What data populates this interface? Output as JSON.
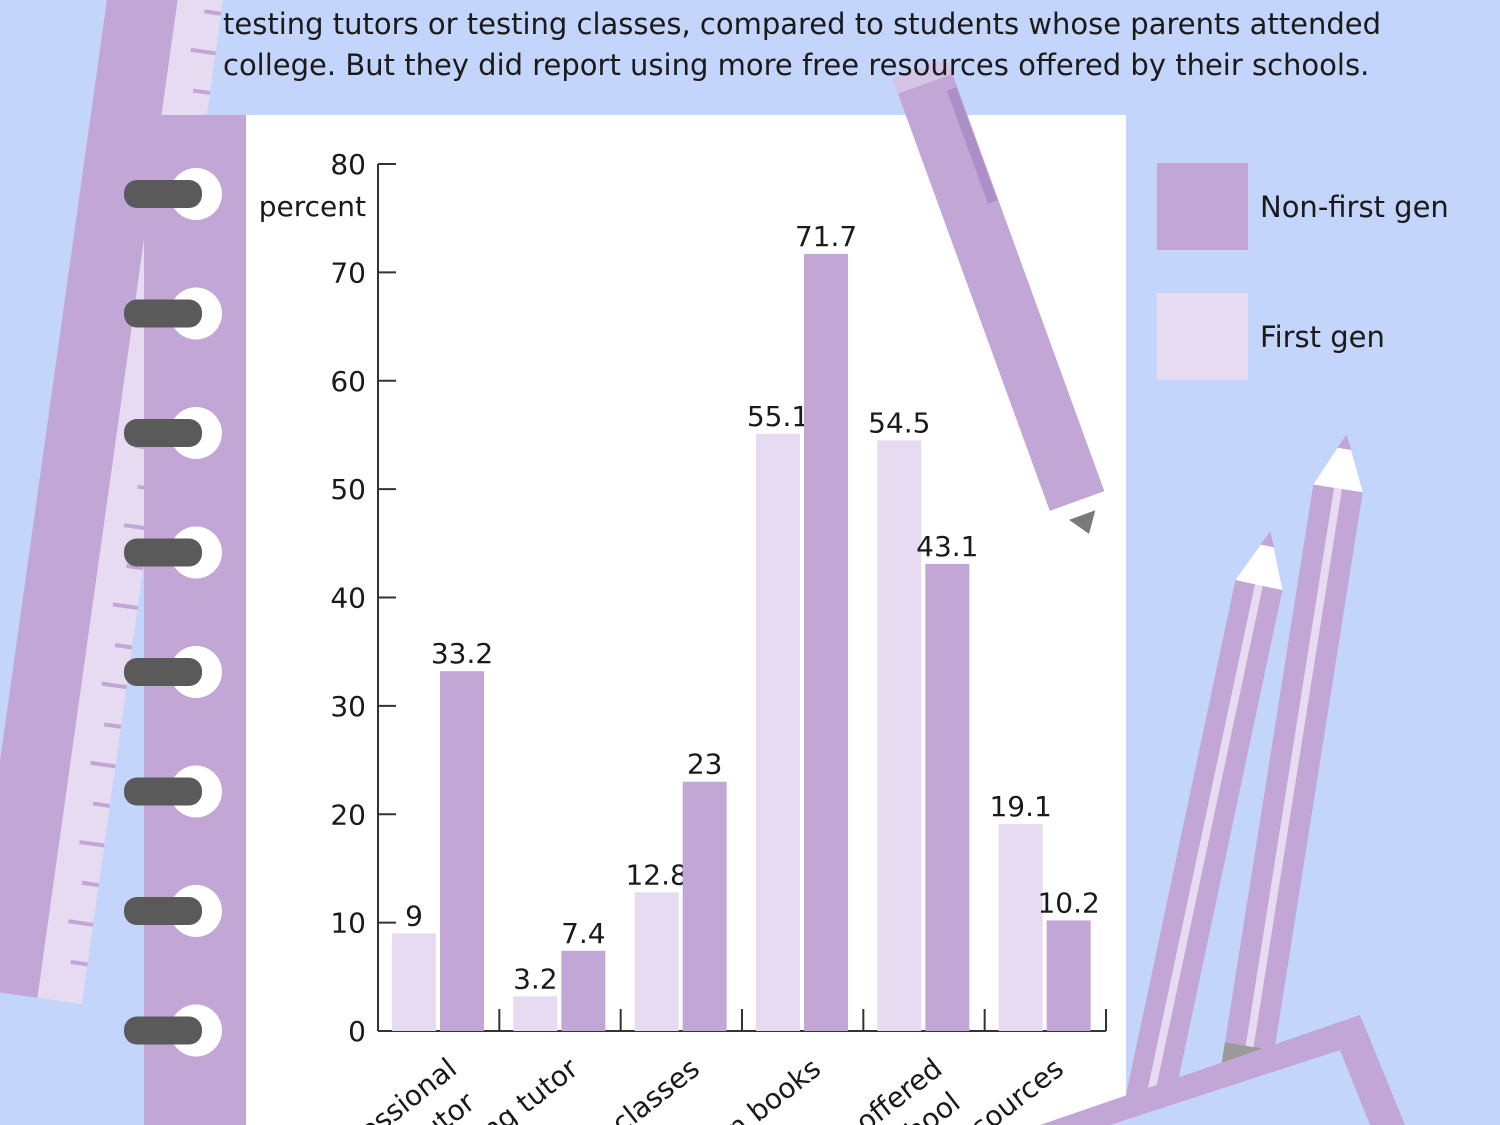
{
  "intro": {
    "lines": [
      "testing tutors or testing classes, compared to students whose parents attended",
      "college. But they did report using more free resources offered by their schools."
    ]
  },
  "colors": {
    "background": "#c3d5fa",
    "non_first_gen": "#c1a6d6",
    "first_gen": "#e6dbf1",
    "notebook_spine": "#c1a6d6",
    "ring": "#5a5a5a"
  },
  "legend": {
    "items": [
      {
        "key": "non_first_gen",
        "label": "Non-first gen"
      },
      {
        "key": "first_gen",
        "label": "First gen"
      }
    ]
  },
  "chart_data": {
    "type": "bar",
    "ylabel": "percent",
    "ylim": [
      0,
      80
    ],
    "yticks": [
      0,
      10,
      20,
      30,
      40,
      50,
      60,
      70,
      80
    ],
    "categories": [
      [
        "fessional",
        "tutor"
      ],
      [
        "ng tutor"
      ],
      [
        "g classes"
      ],
      [
        "n books"
      ],
      [
        "offered",
        "chool"
      ],
      [
        "sources"
      ]
    ],
    "series": [
      {
        "name": "First gen",
        "key": "first_gen",
        "values": [
          9,
          3.2,
          12.8,
          55.1,
          54.5,
          19.1
        ]
      },
      {
        "name": "Non-first gen",
        "key": "non_first_gen",
        "values": [
          33.2,
          7.4,
          23,
          71.7,
          43.1,
          10.2
        ]
      }
    ]
  }
}
